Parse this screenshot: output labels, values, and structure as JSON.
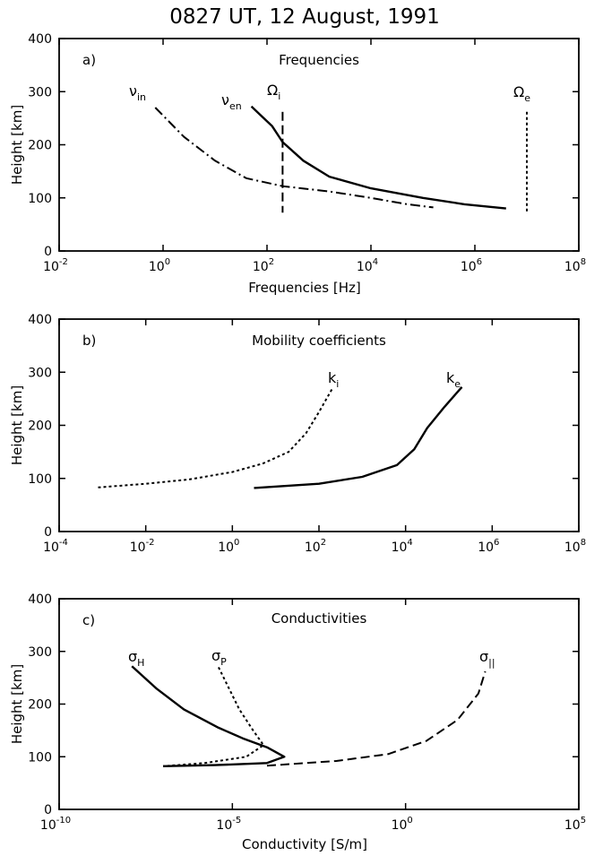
{
  "title": "0827 UT, 12 August, 1991",
  "chart_data": [
    {
      "type": "line",
      "panel": "a)",
      "title": "Frequencies",
      "xlabel": "Frequencies [Hz]",
      "ylabel": "Height [km]",
      "xscale": "log",
      "xlim_exp": [
        -2,
        8
      ],
      "ylim": [
        0,
        400
      ],
      "xticks_exp": [
        "-2",
        "0",
        "2",
        "4",
        "6",
        "8"
      ],
      "yticks": [
        "0",
        "100",
        "200",
        "300",
        "400"
      ],
      "grid": false,
      "series": [
        {
          "name": "ν",
          "sub": "in",
          "style": "dashdot",
          "points": [
            [
              -0.15,
              270
            ],
            [
              0.4,
              215
            ],
            [
              1.0,
              170
            ],
            [
              1.6,
              137
            ],
            [
              2.3,
              122
            ],
            [
              3.2,
              112
            ],
            [
              4.0,
              100
            ],
            [
              4.7,
              88
            ],
            [
              5.2,
              82
            ]
          ]
        },
        {
          "name": "ν",
          "sub": "en",
          "style": "solid",
          "points": [
            [
              1.7,
              272
            ],
            [
              2.1,
              235
            ],
            [
              2.3,
              205
            ],
            [
              2.7,
              170
            ],
            [
              3.2,
              140
            ],
            [
              4.0,
              118
            ],
            [
              5.0,
              100
            ],
            [
              5.8,
              88
            ],
            [
              6.6,
              80
            ]
          ]
        },
        {
          "name": "Ω",
          "sub": "i",
          "style": "dashed",
          "points": [
            [
              2.3,
              262
            ],
            [
              2.3,
              72
            ]
          ]
        },
        {
          "name": "Ω",
          "sub": "e",
          "style": "dotted",
          "points": [
            [
              7.0,
              262
            ],
            [
              7.0,
              72
            ]
          ]
        }
      ]
    },
    {
      "type": "line",
      "panel": "b)",
      "title": "Mobility coefficients",
      "xlabel": "",
      "ylabel": "Height [km]",
      "xscale": "log",
      "xlim_exp": [
        -4,
        8
      ],
      "ylim": [
        0,
        400
      ],
      "xticks_exp": [
        "-4",
        "-2",
        "0",
        "2",
        "4",
        "6",
        "8"
      ],
      "yticks": [
        "0",
        "100",
        "200",
        "300",
        "400"
      ],
      "grid": false,
      "series": [
        {
          "name": "k",
          "sub": "i",
          "style": "dotted",
          "points": [
            [
              -3.1,
              83
            ],
            [
              -2.0,
              90
            ],
            [
              -1.0,
              98
            ],
            [
              0.0,
              112
            ],
            [
              0.7,
              128
            ],
            [
              1.3,
              150
            ],
            [
              1.7,
              185
            ],
            [
              2.0,
              225
            ],
            [
              2.3,
              268
            ]
          ]
        },
        {
          "name": "k",
          "sub": "e",
          "style": "solid",
          "points": [
            [
              0.5,
              82
            ],
            [
              2.0,
              90
            ],
            [
              3.0,
              103
            ],
            [
              3.8,
              125
            ],
            [
              4.2,
              155
            ],
            [
              4.5,
              195
            ],
            [
              4.9,
              235
            ],
            [
              5.3,
              272
            ]
          ]
        }
      ]
    },
    {
      "type": "line",
      "panel": "c)",
      "title": "Conductivities",
      "xlabel": "Conductivity   [S/m]",
      "ylabel": "Height [km]",
      "xscale": "log",
      "xlim_exp": [
        -10,
        5
      ],
      "ylim": [
        0,
        400
      ],
      "xticks_exp": [
        "-10",
        "-5",
        "0",
        "5"
      ],
      "yticks": [
        "0",
        "100",
        "200",
        "300",
        "400"
      ],
      "grid": false,
      "series": [
        {
          "name": "σ",
          "sub": "H",
          "style": "solid",
          "points": [
            [
              -7.9,
              272
            ],
            [
              -7.2,
              230
            ],
            [
              -6.4,
              190
            ],
            [
              -5.4,
              155
            ],
            [
              -4.7,
              135
            ],
            [
              -4.0,
              118
            ],
            [
              -3.5,
              100
            ],
            [
              -4.0,
              88
            ],
            [
              -5.5,
              84
            ],
            [
              -7.0,
              82
            ]
          ]
        },
        {
          "name": "σ",
          "sub": "P",
          "style": "dotted",
          "points": [
            [
              -5.4,
              270
            ],
            [
              -5.1,
              230
            ],
            [
              -4.8,
              190
            ],
            [
              -4.4,
              150
            ],
            [
              -4.1,
              122
            ],
            [
              -4.6,
              100
            ],
            [
              -5.8,
              88
            ],
            [
              -7.0,
              82
            ]
          ]
        },
        {
          "name": "σ",
          "sub": "||",
          "style": "dashed",
          "points": [
            [
              -4.0,
              83
            ],
            [
              -2.0,
              92
            ],
            [
              -0.5,
              105
            ],
            [
              0.6,
              130
            ],
            [
              1.5,
              170
            ],
            [
              2.1,
              220
            ],
            [
              2.3,
              262
            ]
          ]
        }
      ]
    }
  ]
}
